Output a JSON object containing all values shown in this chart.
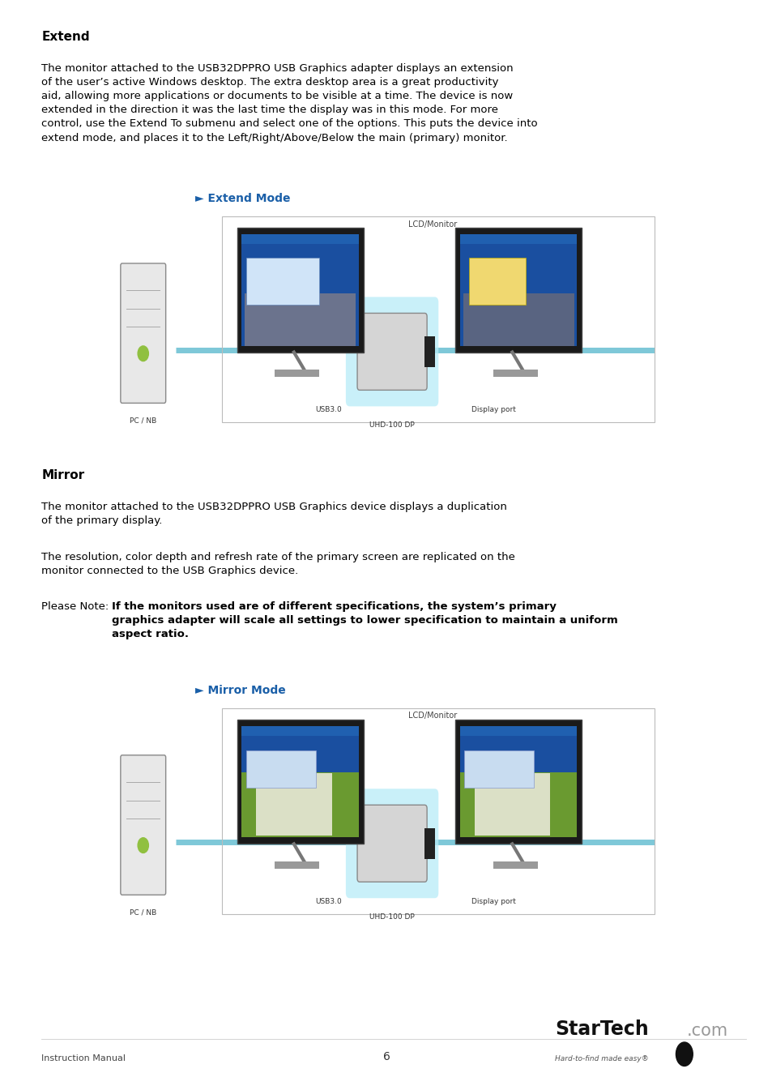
{
  "background_color": "#ffffff",
  "section1_title": "Extend",
  "section1_body": "The monitor attached to the USB32DPPRO USB Graphics adapter displays an extension\nof the user’s active Windows desktop. The extra desktop area is a great productivity\naid, allowing more applications or documents to be visible at a time. The device is now\nextended in the direction it was the last time the display was in this mode. For more\ncontrol, use the Extend To submenu and select one of the options. This puts the device into\nextend mode, and places it to the Left/Right/Above/Below the main (primary) monitor.",
  "extend_mode_label": "► Extend Mode",
  "section2_title": "Mirror",
  "section2_body1": "The monitor attached to the USB32DPPRO USB Graphics device displays a duplication\nof the primary display.",
  "section2_body2": "The resolution, color depth and refresh rate of the primary screen are replicated on the\nmonitor connected to the USB Graphics device.",
  "section2_body3_normal": "Please Note: ",
  "section2_body3_bold": "If the monitors used are of different specifications, the system’s primary\ngraphics adapter will scale all settings to lower specification to maintain a uniform\naspect ratio.",
  "mirror_mode_label": "► Mirror Mode",
  "footer_left": "Instruction Manual",
  "footer_center": "6",
  "footer_right3": "Hard-to-find made easy®",
  "title_fontsize": 11,
  "body_fontsize": 9.5,
  "mode_label_fontsize": 10,
  "footer_fontsize": 8
}
